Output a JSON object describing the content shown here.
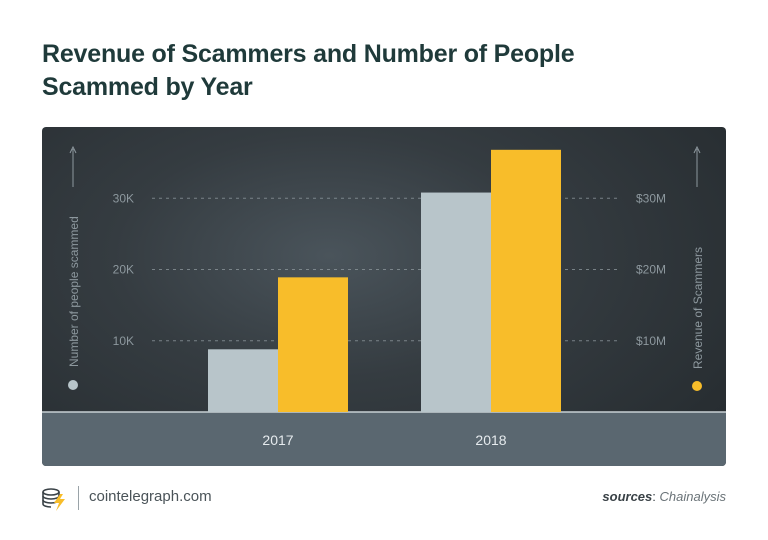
{
  "title": "Revenue of Scammers and Number of People Scammed by Year",
  "footer": {
    "site": "cointelegraph.com",
    "sources_label": "sources",
    "sources_value": "Chainalysis"
  },
  "colors": {
    "people": "#b8c5ca",
    "revenue": "#f8bd2a",
    "panel_bg": "#30373c",
    "x_band": "#5a6770"
  },
  "chart_data": {
    "type": "bar",
    "categories": [
      "2017",
      "2018"
    ],
    "series": [
      {
        "name": "Number of people scammed",
        "axis": "left",
        "values": [
          8800,
          30800
        ]
      },
      {
        "name": "Revenue of Scammers",
        "axis": "right",
        "values": [
          18900000,
          36800000
        ]
      }
    ],
    "ylabel": "Number of people scammed",
    "ylabel_right": "Revenue of Scammers",
    "ylim": [
      0,
      40000
    ],
    "ylim_right": [
      0,
      40000000
    ],
    "yticks": [
      10000,
      20000,
      30000
    ],
    "yticklabels": [
      "10K",
      "20K",
      "30K"
    ],
    "yticklabels_right": [
      "$10M",
      "$20M",
      "$30M"
    ],
    "grid": true,
    "legend": "axis-title dots"
  }
}
